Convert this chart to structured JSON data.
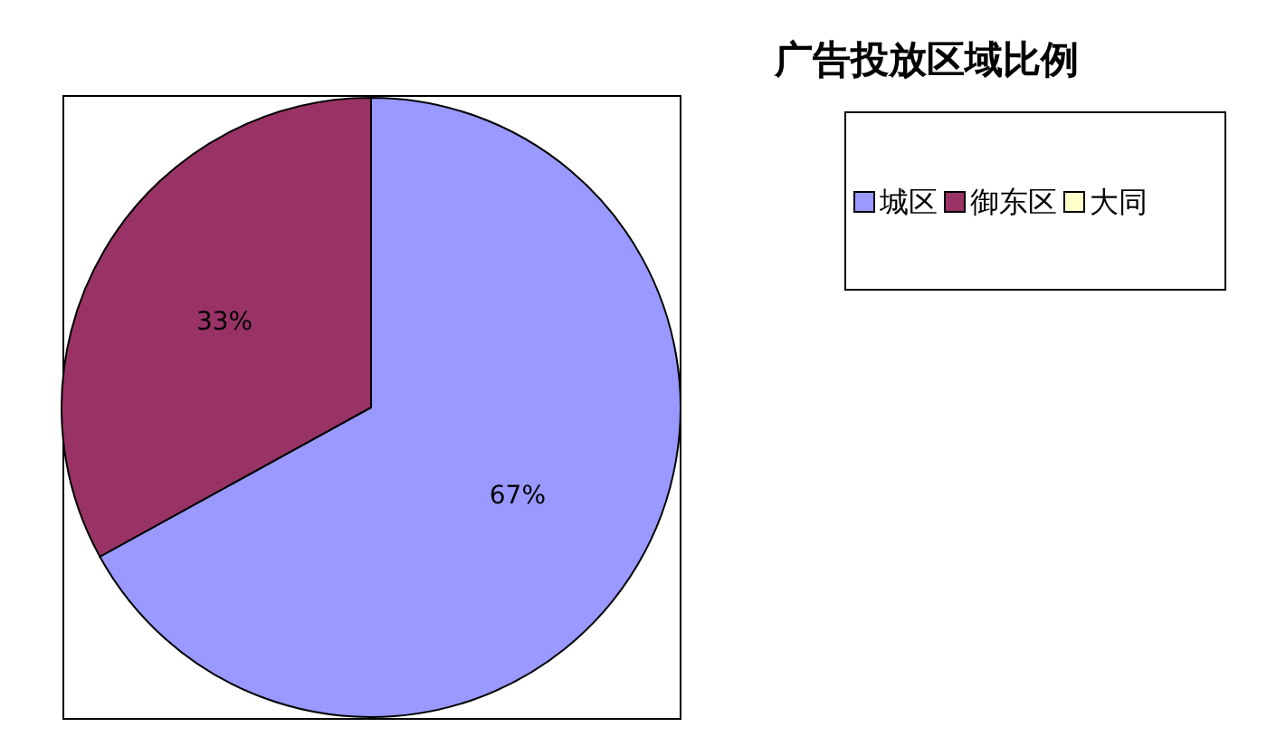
{
  "chart_data": {
    "type": "pie",
    "title": "广告投放区域比例",
    "categories": [
      "城区",
      "御东区",
      "大同"
    ],
    "values": [
      67,
      33,
      0
    ],
    "colors": [
      "#9999ff",
      "#993366",
      "#ffffcc"
    ],
    "value_labels": [
      "67%",
      "33%",
      null
    ],
    "legend": "top right"
  }
}
